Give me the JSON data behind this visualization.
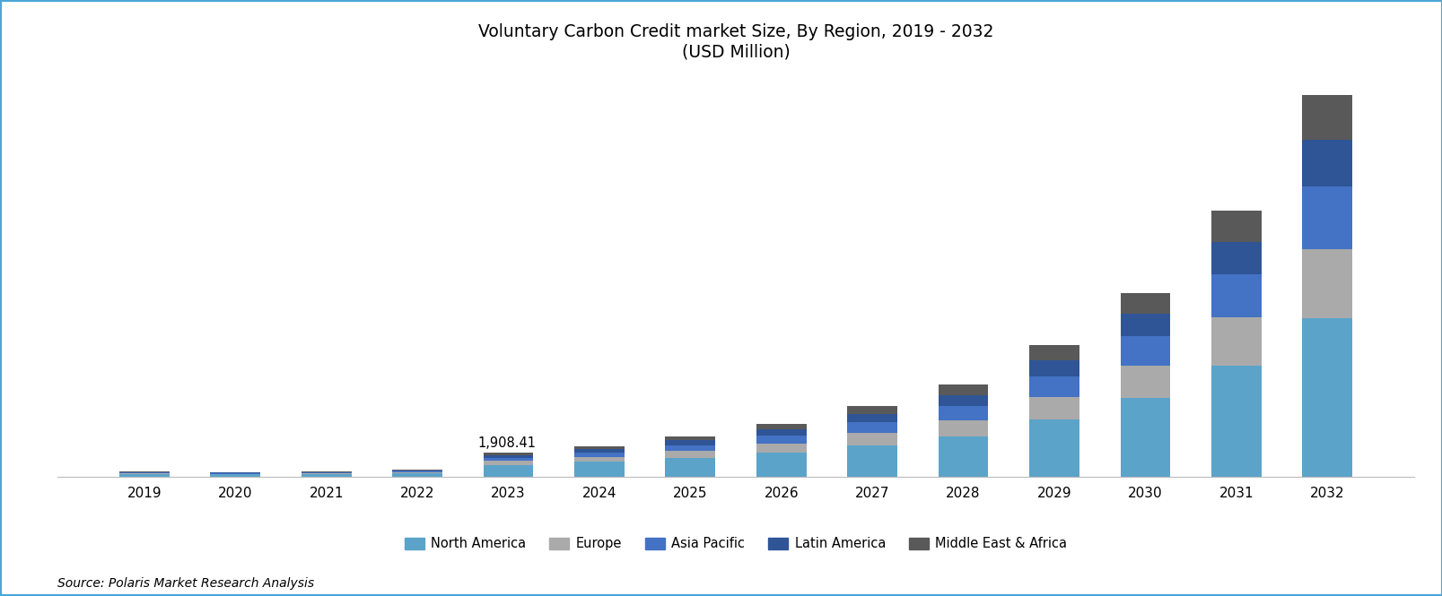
{
  "title_line1": "Voluntary Carbon Credit market Size, By Region, 2019 - 2032",
  "title_line2": "(USD Million)",
  "years": [
    2019,
    2020,
    2021,
    2022,
    2023,
    2024,
    2025,
    2026,
    2027,
    2028,
    2029,
    2030,
    2031,
    2032
  ],
  "regions": [
    "North America",
    "Europe",
    "Asia Pacific",
    "Latin America",
    "Middle East & Africa"
  ],
  "colors": [
    "#5BA3C9",
    "#AAAAAA",
    "#4472C4",
    "#2F5597",
    "#595959"
  ],
  "data": {
    "North America": [
      220,
      185,
      220,
      295,
      955,
      1180,
      1500,
      1900,
      2500,
      3200,
      4500,
      6200,
      8800,
      12500
    ],
    "Europe": [
      65,
      55,
      65,
      90,
      295,
      390,
      530,
      700,
      950,
      1250,
      1800,
      2600,
      3800,
      5500
    ],
    "Asia Pacific": [
      55,
      45,
      55,
      75,
      265,
      350,
      480,
      640,
      860,
      1150,
      1650,
      2300,
      3400,
      4900
    ],
    "Latin America": [
      40,
      35,
      40,
      55,
      200,
      265,
      360,
      480,
      650,
      870,
      1250,
      1750,
      2550,
      3700
    ],
    "Middle East & Africa": [
      28,
      22,
      28,
      38,
      193,
      255,
      345,
      460,
      625,
      835,
      1195,
      1675,
      2440,
      3550
    ]
  },
  "annotation_year": 2023,
  "annotation_text": "1,908.41",
  "source_text": "Source: Polaris Market Research Analysis",
  "ylim_max": 32000,
  "background_color": "#FFFFFF",
  "border_color": "#4DA6D5",
  "title_fontsize": 13.5,
  "axis_fontsize": 11,
  "legend_fontsize": 10.5,
  "source_fontsize": 10
}
